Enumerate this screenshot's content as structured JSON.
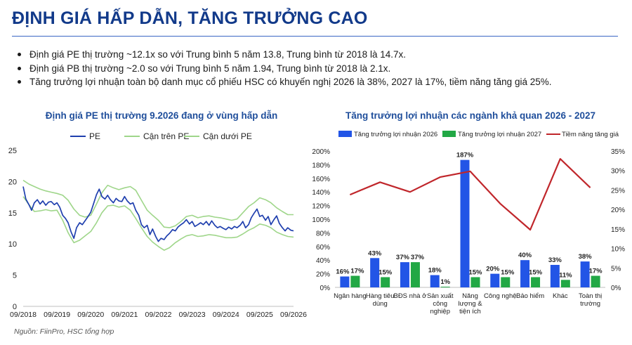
{
  "header": {
    "title": "ĐỊNH GIÁ HẤP DẪN, TĂNG TRƯỞNG CAO"
  },
  "bullets": [
    "Định giá PE thị trường ~12.1x so với Trung bình 5 năm 13.8, Trung bình từ 2018 là 14.7x.",
    "Định giá PB thị trường ~2.0 so với Trung bình 5 năm 1.94, Trung bình từ 2018 là 2.1x.",
    "Tăng trưởng lợi nhuận toàn bộ danh mục cổ phiếu HSC có khuyến nghị 2026 là 38%, 2027 là 17%, tiềm năng tăng giá 25%."
  ],
  "source": "Nguồn: FiinPro, HSC tổng hợp",
  "colors": {
    "title": "#123a8a",
    "pe": "#1f3fae",
    "band": "#9fd68a",
    "bar2026": "#2255e6",
    "bar2027": "#22a845",
    "upside": "#c0262b"
  },
  "chart_data": [
    {
      "type": "line",
      "title": "Định giá PE thị trường 9.2026 đang ở vùng hấp dẫn",
      "legend_position": "top",
      "ylim": [
        0,
        25
      ],
      "yticks": [
        "0",
        "5",
        "10",
        "15",
        "20",
        "25"
      ],
      "xticks": [
        "09/2018",
        "09/2019",
        "09/2020",
        "09/2021",
        "09/2022",
        "09/2023",
        "09/2024",
        "09/2025",
        "09/2026"
      ],
      "x_range": [
        2018.75,
        2026.75
      ],
      "grid": false,
      "series": [
        {
          "name": "PE",
          "color": "#1f3fae",
          "points": [
            [
              2018.75,
              19.2
            ],
            [
              2018.83,
              17.2
            ],
            [
              2018.92,
              16.3
            ],
            [
              2019.0,
              15.4
            ],
            [
              2019.08,
              16.6
            ],
            [
              2019.17,
              17.1
            ],
            [
              2019.25,
              16.4
            ],
            [
              2019.33,
              16.9
            ],
            [
              2019.42,
              16.2
            ],
            [
              2019.5,
              16.7
            ],
            [
              2019.58,
              16.8
            ],
            [
              2019.67,
              16.3
            ],
            [
              2019.75,
              16.6
            ],
            [
              2019.83,
              15.9
            ],
            [
              2019.92,
              14.6
            ],
            [
              2020.0,
              14.1
            ],
            [
              2020.08,
              13.4
            ],
            [
              2020.17,
              11.9
            ],
            [
              2020.25,
              10.9
            ],
            [
              2020.33,
              12.6
            ],
            [
              2020.42,
              13.4
            ],
            [
              2020.5,
              13.1
            ],
            [
              2020.58,
              13.7
            ],
            [
              2020.67,
              14.4
            ],
            [
              2020.75,
              15.1
            ],
            [
              2020.83,
              16.4
            ],
            [
              2020.92,
              17.9
            ],
            [
              2021.0,
              18.8
            ],
            [
              2021.08,
              17.6
            ],
            [
              2021.17,
              17.2
            ],
            [
              2021.25,
              17.8
            ],
            [
              2021.33,
              17.1
            ],
            [
              2021.42,
              16.6
            ],
            [
              2021.5,
              17.3
            ],
            [
              2021.58,
              16.9
            ],
            [
              2021.67,
              16.8
            ],
            [
              2021.75,
              17.6
            ],
            [
              2021.83,
              16.9
            ],
            [
              2021.92,
              16.4
            ],
            [
              2022.0,
              16.6
            ],
            [
              2022.08,
              15.4
            ],
            [
              2022.17,
              14.6
            ],
            [
              2022.25,
              13.1
            ],
            [
              2022.33,
              12.6
            ],
            [
              2022.42,
              13.0
            ],
            [
              2022.5,
              11.5
            ],
            [
              2022.58,
              12.4
            ],
            [
              2022.67,
              11.2
            ],
            [
              2022.75,
              10.4
            ],
            [
              2022.83,
              10.9
            ],
            [
              2022.92,
              10.7
            ],
            [
              2023.0,
              11.3
            ],
            [
              2023.08,
              11.7
            ],
            [
              2023.17,
              12.3
            ],
            [
              2023.25,
              12.1
            ],
            [
              2023.33,
              12.7
            ],
            [
              2023.42,
              13.1
            ],
            [
              2023.5,
              13.4
            ],
            [
              2023.58,
              13.9
            ],
            [
              2023.67,
              13.2
            ],
            [
              2023.75,
              13.6
            ],
            [
              2023.83,
              12.8
            ],
            [
              2023.92,
              13.1
            ],
            [
              2024.0,
              13.4
            ],
            [
              2024.08,
              13.1
            ],
            [
              2024.17,
              13.6
            ],
            [
              2024.25,
              13.0
            ],
            [
              2024.33,
              13.7
            ],
            [
              2024.42,
              13.0
            ],
            [
              2024.5,
              12.6
            ],
            [
              2024.58,
              12.8
            ],
            [
              2024.67,
              12.5
            ],
            [
              2024.75,
              12.3
            ],
            [
              2024.83,
              12.7
            ],
            [
              2024.92,
              12.4
            ],
            [
              2025.0,
              12.8
            ],
            [
              2025.08,
              12.6
            ],
            [
              2025.17,
              13.0
            ],
            [
              2025.25,
              13.6
            ],
            [
              2025.33,
              12.6
            ],
            [
              2025.42,
              13.1
            ],
            [
              2025.5,
              14.2
            ],
            [
              2025.58,
              14.9
            ],
            [
              2025.67,
              15.6
            ],
            [
              2025.75,
              14.4
            ],
            [
              2025.83,
              14.6
            ],
            [
              2025.92,
              13.8
            ],
            [
              2026.0,
              14.4
            ],
            [
              2026.08,
              13.1
            ],
            [
              2026.17,
              13.9
            ],
            [
              2026.25,
              14.5
            ],
            [
              2026.33,
              13.3
            ],
            [
              2026.42,
              12.6
            ],
            [
              2026.5,
              12.1
            ],
            [
              2026.58,
              12.6
            ],
            [
              2026.67,
              12.2
            ],
            [
              2026.75,
              12.1
            ]
          ]
        },
        {
          "name": "Cận trên PE",
          "color": "#9fd68a",
          "points": [
            [
              2018.75,
              20.2
            ],
            [
              2018.92,
              19.6
            ],
            [
              2019.08,
              19.2
            ],
            [
              2019.25,
              18.8
            ],
            [
              2019.42,
              18.5
            ],
            [
              2019.58,
              18.3
            ],
            [
              2019.75,
              18.1
            ],
            [
              2019.92,
              17.8
            ],
            [
              2020.08,
              17.0
            ],
            [
              2020.25,
              15.6
            ],
            [
              2020.42,
              14.6
            ],
            [
              2020.58,
              14.3
            ],
            [
              2020.75,
              14.6
            ],
            [
              2020.92,
              16.4
            ],
            [
              2021.08,
              18.2
            ],
            [
              2021.25,
              19.4
            ],
            [
              2021.42,
              19.0
            ],
            [
              2021.58,
              18.7
            ],
            [
              2021.75,
              19.0
            ],
            [
              2021.92,
              19.2
            ],
            [
              2022.08,
              18.6
            ],
            [
              2022.25,
              17.0
            ],
            [
              2022.42,
              15.4
            ],
            [
              2022.58,
              14.6
            ],
            [
              2022.75,
              13.8
            ],
            [
              2022.92,
              12.7
            ],
            [
              2023.08,
              12.6
            ],
            [
              2023.25,
              12.9
            ],
            [
              2023.42,
              13.6
            ],
            [
              2023.58,
              14.4
            ],
            [
              2023.75,
              14.6
            ],
            [
              2023.92,
              14.2
            ],
            [
              2024.08,
              14.4
            ],
            [
              2024.25,
              14.5
            ],
            [
              2024.42,
              14.3
            ],
            [
              2024.58,
              14.2
            ],
            [
              2024.75,
              14.0
            ],
            [
              2024.92,
              13.8
            ],
            [
              2025.08,
              14.0
            ],
            [
              2025.25,
              15.0
            ],
            [
              2025.42,
              16.0
            ],
            [
              2025.58,
              16.6
            ],
            [
              2025.75,
              17.4
            ],
            [
              2025.92,
              17.1
            ],
            [
              2026.08,
              16.6
            ],
            [
              2026.25,
              15.8
            ],
            [
              2026.42,
              15.2
            ],
            [
              2026.58,
              14.7
            ],
            [
              2026.75,
              14.7
            ]
          ]
        },
        {
          "name": "Cận dưới PE",
          "color": "#9fd68a",
          "points": [
            [
              2018.75,
              17.6
            ],
            [
              2018.92,
              16.3
            ],
            [
              2019.08,
              15.2
            ],
            [
              2019.25,
              15.3
            ],
            [
              2019.42,
              15.5
            ],
            [
              2019.58,
              15.3
            ],
            [
              2019.75,
              15.4
            ],
            [
              2019.92,
              13.8
            ],
            [
              2020.08,
              11.8
            ],
            [
              2020.25,
              10.2
            ],
            [
              2020.42,
              10.6
            ],
            [
              2020.58,
              11.3
            ],
            [
              2020.75,
              12.0
            ],
            [
              2020.92,
              13.4
            ],
            [
              2021.08,
              15.0
            ],
            [
              2021.25,
              16.1
            ],
            [
              2021.42,
              16.2
            ],
            [
              2021.58,
              15.9
            ],
            [
              2021.75,
              16.1
            ],
            [
              2021.92,
              15.4
            ],
            [
              2022.08,
              14.1
            ],
            [
              2022.25,
              12.6
            ],
            [
              2022.42,
              11.2
            ],
            [
              2022.58,
              10.3
            ],
            [
              2022.75,
              9.6
            ],
            [
              2022.92,
              9.0
            ],
            [
              2023.08,
              9.4
            ],
            [
              2023.25,
              10.2
            ],
            [
              2023.42,
              10.8
            ],
            [
              2023.58,
              11.3
            ],
            [
              2023.75,
              11.5
            ],
            [
              2023.92,
              11.2
            ],
            [
              2024.08,
              11.3
            ],
            [
              2024.25,
              11.5
            ],
            [
              2024.42,
              11.4
            ],
            [
              2024.58,
              11.2
            ],
            [
              2024.75,
              11.0
            ],
            [
              2024.92,
              11.0
            ],
            [
              2025.08,
              11.1
            ],
            [
              2025.25,
              11.6
            ],
            [
              2025.42,
              12.2
            ],
            [
              2025.58,
              12.6
            ],
            [
              2025.75,
              13.2
            ],
            [
              2025.92,
              13.0
            ],
            [
              2026.08,
              12.6
            ],
            [
              2026.25,
              11.9
            ],
            [
              2026.42,
              11.5
            ],
            [
              2026.58,
              11.2
            ],
            [
              2026.75,
              11.1
            ]
          ]
        }
      ]
    },
    {
      "type": "bar",
      "title": "Tăng trưởng lợi nhuận các ngành khả quan 2026 - 2027",
      "legend_position": "top",
      "grid": false,
      "categories": [
        [
          "Ngân hàng"
        ],
        [
          "Hàng tiêu",
          "dùng"
        ],
        [
          "BĐS nhà ở"
        ],
        [
          "Sản xuất",
          "công",
          "nghiệp"
        ],
        [
          "Năng",
          "lượng &",
          "tiện ích"
        ],
        [
          "Công nghệ"
        ],
        [
          "Bảo hiểm"
        ],
        [
          "Khác"
        ],
        [
          "Toàn thị",
          "trường"
        ]
      ],
      "ylim_left": [
        0,
        200
      ],
      "yticks_left": [
        "0%",
        "20%",
        "40%",
        "60%",
        "80%",
        "100%",
        "120%",
        "140%",
        "160%",
        "180%",
        "200%"
      ],
      "ylim_right": [
        0,
        35
      ],
      "yticks_right": [
        "0%",
        "5%",
        "10%",
        "15%",
        "20%",
        "25%",
        "30%",
        "35%"
      ],
      "series": [
        {
          "name": "Tăng trưởng lợi nhuận 2026",
          "color": "#2255e6",
          "axis": "left",
          "values": [
            16,
            43,
            37,
            18,
            187,
            20,
            40,
            33,
            38
          ],
          "labels": [
            "16%",
            "43%",
            "37%",
            "18%",
            "187%",
            "20%",
            "40%",
            "33%",
            "38%"
          ]
        },
        {
          "name": "Tăng trưởng lợi nhuận 2027",
          "color": "#22a845",
          "axis": "left",
          "values": [
            17,
            15,
            37,
            1,
            15,
            15,
            15,
            11,
            17
          ],
          "labels": [
            "17%",
            "15%",
            "37%",
            "1%",
            "15%",
            "15%",
            "15%",
            "11%",
            "17%"
          ]
        },
        {
          "name": "Tiềm năng tăng giá",
          "color": "#c0262b",
          "axis": "right",
          "type": "line",
          "values": [
            23.8,
            27.0,
            24.5,
            28.3,
            29.8,
            21.5,
            14.8,
            33.0,
            25.6
          ]
        }
      ]
    }
  ]
}
